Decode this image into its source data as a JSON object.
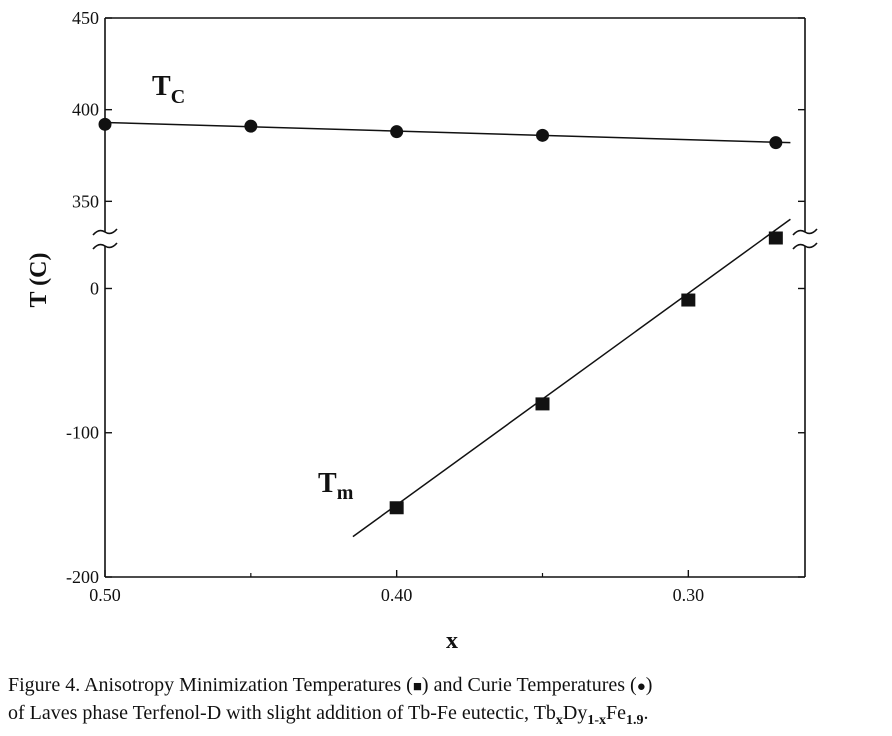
{
  "chart_data": {
    "type": "scatter",
    "xlabel": "x",
    "ylabel": "T (C)",
    "x_ticks": [
      "0.50",
      "0.40",
      "0.30"
    ],
    "xlim": [
      0.5,
      0.26
    ],
    "upper_panel": {
      "ylim": [
        330,
        450
      ],
      "y_ticks": [
        "450",
        "400",
        "350"
      ]
    },
    "lower_panel": {
      "ylim": [
        -200,
        35
      ],
      "y_ticks": [
        "0",
        "-100",
        "-200"
      ]
    },
    "series": [
      {
        "name": "T_C",
        "label_main": "T",
        "label_sub": "C",
        "marker": "circle",
        "panel": "upper",
        "x": [
          0.5,
          0.45,
          0.4,
          0.35,
          0.27
        ],
        "y": [
          392,
          391,
          388,
          386,
          382
        ],
        "fit": {
          "x": [
            0.5,
            0.265
          ],
          "y": [
            393,
            382
          ]
        }
      },
      {
        "name": "T_m",
        "label_main": "T",
        "label_sub": "m",
        "marker": "square",
        "panel": "lower",
        "x": [
          0.4,
          0.35,
          0.3,
          0.27
        ],
        "y": [
          -152,
          -80,
          -8,
          35
        ],
        "fit": {
          "x": [
            0.415,
            0.265
          ],
          "y": [
            -172,
            48
          ]
        }
      }
    ]
  },
  "caption": {
    "line1_a": "Figure 4.  Anisotropy Minimization Temperatures (",
    "symbol_square": "■",
    "line1_b": ") and Curie Temperatures (",
    "symbol_circle": "●",
    "line1_c": ")",
    "line2_a": "of Laves phase Terfenol-D with slight addition of Tb-Fe eutectic, Tb",
    "sub1": "x",
    "line2_b": "Dy",
    "sub2": "1-x",
    "line2_c": "Fe",
    "sub3": "1.9",
    "line2_d": "."
  }
}
